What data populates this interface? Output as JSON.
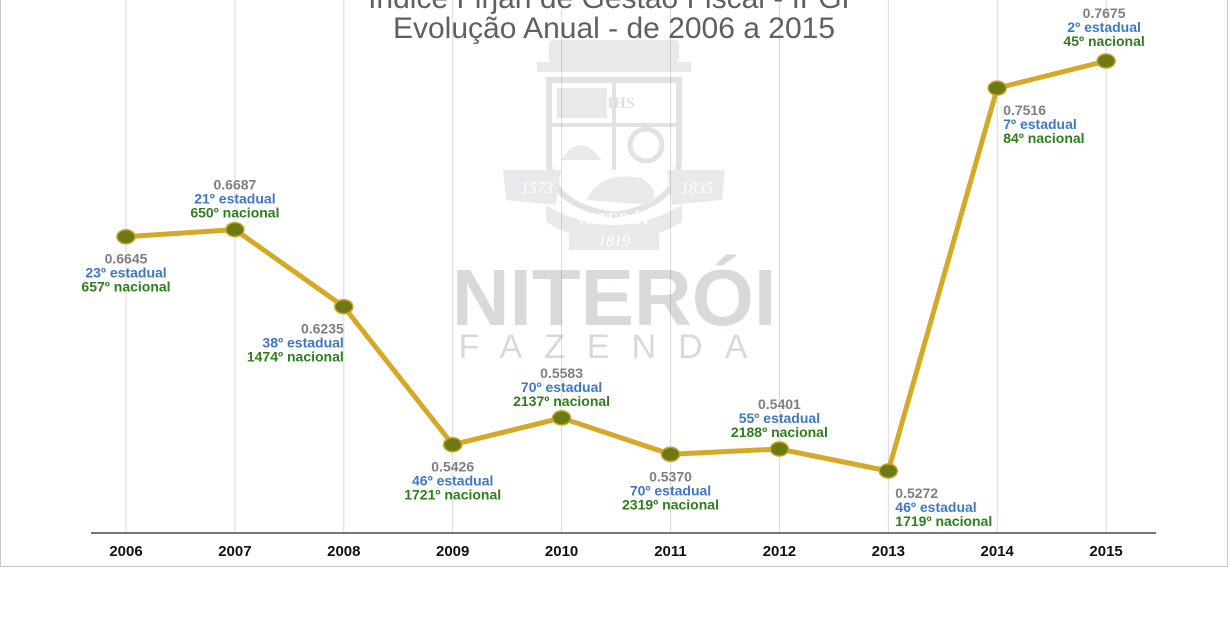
{
  "chart_data": {
    "type": "line",
    "title": "Índice Firjan de Gestão Fiscal - IFGF",
    "subtitle": "Evolução Anual - de 2006 a 2015",
    "xlabel": "",
    "ylabel": "",
    "ylim": [
      0.5,
      0.78
    ],
    "grid": "vertical",
    "legend": "none",
    "categories": [
      "2006",
      "2007",
      "2008",
      "2009",
      "2010",
      "2011",
      "2012",
      "2013",
      "2014",
      "2015"
    ],
    "series": [
      {
        "values": [
          0.6645,
          0.6687,
          0.6235,
          0.5426,
          0.5583,
          0.537,
          0.5401,
          0.5272,
          0.7516,
          0.7675
        ]
      }
    ],
    "point_labels": [
      {
        "value": "0.6645",
        "state": "23º estadual",
        "national": "657º nacional",
        "side": "below"
      },
      {
        "value": "0.6687",
        "state": "21º estadual",
        "national": "650º nacional",
        "side": "above"
      },
      {
        "value": "0.6235",
        "state": "38º estadual",
        "national": "1474º nacional",
        "side": "below"
      },
      {
        "value": "0.5426",
        "state": "46º estadual",
        "national": "1721º nacional",
        "side": "below"
      },
      {
        "value": "0.5583",
        "state": "70º estadual",
        "national": "2137º nacional",
        "side": "above"
      },
      {
        "value": "0.5370",
        "state": "70º estadual",
        "national": "2319º nacional",
        "side": "below"
      },
      {
        "value": "0.5401",
        "state": "55º estadual",
        "national": "2188º nacional",
        "side": "above"
      },
      {
        "value": "0.5272",
        "state": "46º estadual",
        "national": "1719º nacional",
        "side": "below"
      },
      {
        "value": "0.7516",
        "state": "7º estadual",
        "national": "84º nacional",
        "side": "below"
      },
      {
        "value": "0.7675",
        "state": "2º estadual",
        "national": "45º nacional",
        "side": "above"
      }
    ],
    "colors": {
      "line": "#d4a928",
      "marker": "#6b7a12",
      "value": "#7f7f7f",
      "state": "#3f78c0",
      "national": "#2e7d1e"
    }
  },
  "watermark": {
    "name": "NITERÓI",
    "subname": "FAZENDA",
    "seal_year_left": "1573",
    "seal_year_right": "1835",
    "seal_year_bottom": "1819",
    "seal_motto": "NITERÓI",
    "seal_ihs": "IHS"
  }
}
